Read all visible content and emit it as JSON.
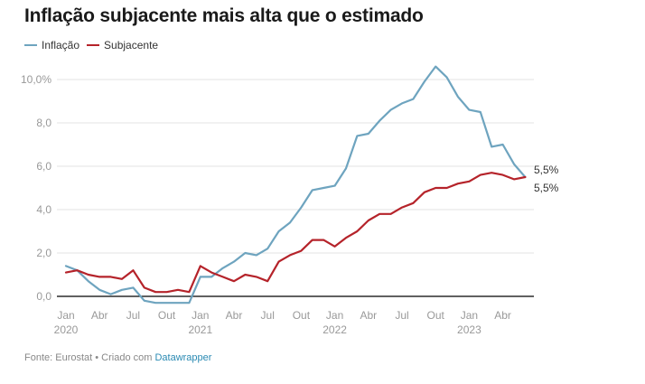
{
  "title": "Inflação subjacente mais alta que o estimado",
  "footer": {
    "source_text": "Fonte: Eurostat • Criado com ",
    "link_text": "Datawrapper"
  },
  "chart_data": {
    "type": "line",
    "title": "Inflação subjacente mais alta que o estimado",
    "xlabel": "",
    "ylabel": "",
    "ylim": [
      0,
      10
    ],
    "y_ticks": [
      {
        "value": 10,
        "label": "10,0%"
      },
      {
        "value": 8,
        "label": "8,0"
      },
      {
        "value": 6,
        "label": "6,0"
      },
      {
        "value": 4,
        "label": "4,0"
      },
      {
        "value": 2,
        "label": "2,0"
      },
      {
        "value": 0,
        "label": "0,0"
      }
    ],
    "x_ticks": [
      {
        "index": 0,
        "label": "Jan",
        "year": "2020"
      },
      {
        "index": 3,
        "label": "Abr",
        "year": ""
      },
      {
        "index": 6,
        "label": "Jul",
        "year": ""
      },
      {
        "index": 9,
        "label": "Out",
        "year": ""
      },
      {
        "index": 12,
        "label": "Jan",
        "year": "2021"
      },
      {
        "index": 15,
        "label": "Abr",
        "year": ""
      },
      {
        "index": 18,
        "label": "Jul",
        "year": ""
      },
      {
        "index": 21,
        "label": "Out",
        "year": ""
      },
      {
        "index": 24,
        "label": "Jan",
        "year": "2022"
      },
      {
        "index": 27,
        "label": "Abr",
        "year": ""
      },
      {
        "index": 30,
        "label": "Jul",
        "year": ""
      },
      {
        "index": 33,
        "label": "Out",
        "year": ""
      },
      {
        "index": 36,
        "label": "Jan",
        "year": "2023"
      },
      {
        "index": 39,
        "label": "Abr",
        "year": ""
      }
    ],
    "x": [
      "2020-01",
      "2020-02",
      "2020-03",
      "2020-04",
      "2020-05",
      "2020-06",
      "2020-07",
      "2020-08",
      "2020-09",
      "2020-10",
      "2020-11",
      "2020-12",
      "2021-01",
      "2021-02",
      "2021-03",
      "2021-04",
      "2021-05",
      "2021-06",
      "2021-07",
      "2021-08",
      "2021-09",
      "2021-10",
      "2021-11",
      "2021-12",
      "2022-01",
      "2022-02",
      "2022-03",
      "2022-04",
      "2022-05",
      "2022-06",
      "2022-07",
      "2022-08",
      "2022-09",
      "2022-10",
      "2022-11",
      "2022-12",
      "2023-01",
      "2023-02",
      "2023-03",
      "2023-04",
      "2023-05",
      "2023-06"
    ],
    "grid": true,
    "legend": "top-left",
    "series": [
      {
        "name": "Inflação",
        "color": "#6ea4bf",
        "end_label": "5,5%",
        "values": [
          1.4,
          1.2,
          0.7,
          0.3,
          0.1,
          0.3,
          0.4,
          -0.2,
          -0.3,
          -0.3,
          -0.3,
          -0.3,
          0.9,
          0.9,
          1.3,
          1.6,
          2.0,
          1.9,
          2.2,
          3.0,
          3.4,
          4.1,
          4.9,
          5.0,
          5.1,
          5.9,
          7.4,
          7.5,
          8.1,
          8.6,
          8.9,
          9.1,
          9.9,
          10.6,
          10.1,
          9.2,
          8.6,
          8.5,
          6.9,
          7.0,
          6.1,
          5.5
        ]
      },
      {
        "name": "Subjacente",
        "color": "#b5232a",
        "end_label": "5,5%",
        "values": [
          1.1,
          1.2,
          1.0,
          0.9,
          0.9,
          0.8,
          1.2,
          0.4,
          0.2,
          0.2,
          0.3,
          0.2,
          1.4,
          1.1,
          0.9,
          0.7,
          1.0,
          0.9,
          0.7,
          1.6,
          1.9,
          2.1,
          2.6,
          2.6,
          2.3,
          2.7,
          3.0,
          3.5,
          3.8,
          3.8,
          4.1,
          4.3,
          4.8,
          5.0,
          5.0,
          5.2,
          5.3,
          5.6,
          5.7,
          5.6,
          5.4,
          5.5
        ]
      }
    ]
  }
}
